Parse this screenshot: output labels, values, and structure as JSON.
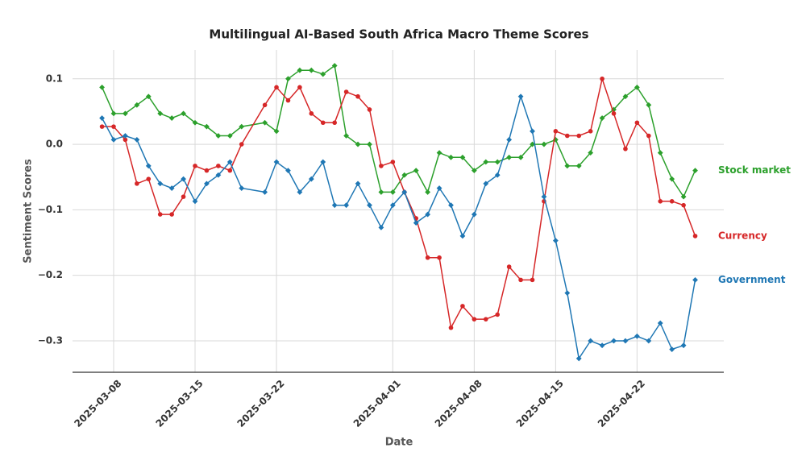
{
  "chart_data": {
    "type": "line",
    "title": "Multilingual AI-Based South Africa Macro Theme Scores",
    "x_label": "Date",
    "y_label": "Sentiment Scores",
    "x": [
      "2025-03-07",
      "2025-03-08",
      "2025-03-09",
      "2025-03-10",
      "2025-03-11",
      "2025-03-12",
      "2025-03-13",
      "2025-03-14",
      "2025-03-15",
      "2025-03-16",
      "2025-03-17",
      "2025-03-18",
      "2025-03-19",
      "2025-03-21",
      "2025-03-22",
      "2025-03-23",
      "2025-03-24",
      "2025-03-25",
      "2025-03-26",
      "2025-03-27",
      "2025-03-28",
      "2025-03-29",
      "2025-03-30",
      "2025-03-31",
      "2025-04-01",
      "2025-04-02",
      "2025-04-03",
      "2025-04-04",
      "2025-04-05",
      "2025-04-06",
      "2025-04-07",
      "2025-04-08",
      "2025-04-09",
      "2025-04-10",
      "2025-04-11",
      "2025-04-12",
      "2025-04-13",
      "2025-04-14",
      "2025-04-15",
      "2025-04-16",
      "2025-04-17",
      "2025-04-18",
      "2025-04-19",
      "2025-04-20",
      "2025-04-21",
      "2025-04-22",
      "2025-04-23",
      "2025-04-24",
      "2025-04-25",
      "2025-04-26",
      "2025-04-27"
    ],
    "series": [
      {
        "name": "Stock market",
        "color": "#2ca02c",
        "marker": "diamond",
        "values": [
          0.087,
          0.047,
          0.047,
          0.06,
          0.073,
          0.047,
          0.04,
          0.047,
          0.033,
          0.027,
          0.013,
          0.013,
          0.027,
          0.033,
          0.02,
          0.1,
          0.113,
          0.113,
          0.107,
          0.12,
          0.013,
          0,
          0,
          -0.073,
          -0.073,
          -0.047,
          -0.04,
          -0.073,
          -0.013,
          -0.02,
          -0.02,
          -0.04,
          -0.027,
          -0.027,
          -0.02,
          -0.02,
          0,
          0,
          0.007,
          -0.033,
          -0.033,
          -0.013,
          0.04,
          0.053,
          0.073,
          0.087,
          0.06,
          -0.013,
          -0.053,
          -0.08,
          -0.04
        ]
      },
      {
        "name": "Currency",
        "color": "#d62728",
        "marker": "circle",
        "values": [
          0.027,
          0.027,
          0.007,
          -0.06,
          -0.053,
          -0.107,
          -0.107,
          -0.08,
          -0.033,
          -0.04,
          -0.033,
          -0.04,
          0,
          0.06,
          0.087,
          0.067,
          0.087,
          0.047,
          0.033,
          0.033,
          0.08,
          0.073,
          0.053,
          -0.033,
          -0.027,
          -0.073,
          -0.113,
          -0.173,
          -0.173,
          -0.28,
          -0.247,
          -0.267,
          -0.267,
          -0.26,
          -0.187,
          -0.207,
          -0.207,
          -0.087,
          0.02,
          0.013,
          0.013,
          0.02,
          0.1,
          0.047,
          -0.007,
          0.033,
          0.013,
          -0.087,
          -0.087,
          -0.093,
          -0.14
        ]
      },
      {
        "name": "Government",
        "color": "#1f77b4",
        "marker": "diamond",
        "values": [
          0.04,
          0.007,
          0.013,
          0.007,
          -0.033,
          -0.06,
          -0.067,
          -0.053,
          -0.087,
          -0.06,
          -0.047,
          -0.027,
          -0.067,
          -0.073,
          -0.027,
          -0.04,
          -0.073,
          -0.053,
          -0.027,
          -0.093,
          -0.093,
          -0.06,
          -0.093,
          -0.127,
          -0.093,
          -0.073,
          -0.12,
          -0.107,
          -0.067,
          -0.093,
          -0.14,
          -0.107,
          -0.06,
          -0.047,
          0.007,
          0.073,
          0.02,
          -0.08,
          -0.147,
          -0.227,
          -0.327,
          -0.3,
          -0.307,
          -0.3,
          -0.3,
          -0.293,
          -0.3,
          -0.273,
          -0.313,
          -0.307,
          -0.207
        ]
      }
    ],
    "xlim": [
      "2025-03-05",
      "2025-04-29"
    ],
    "xticks": [
      "2025-03-08",
      "2025-03-15",
      "2025-03-22",
      "2025-04-01",
      "2025-04-08",
      "2025-04-15",
      "2025-04-22"
    ],
    "ylim": [
      -0.348,
      0.144
    ],
    "yticks": [
      {
        "value": -0.3,
        "label": "−0.3"
      },
      {
        "value": -0.2,
        "label": "−0.2"
      },
      {
        "value": -0.1,
        "label": "−0.1"
      },
      {
        "value": 0,
        "label": "0.0"
      },
      0.1
    ],
    "grid": true
  }
}
